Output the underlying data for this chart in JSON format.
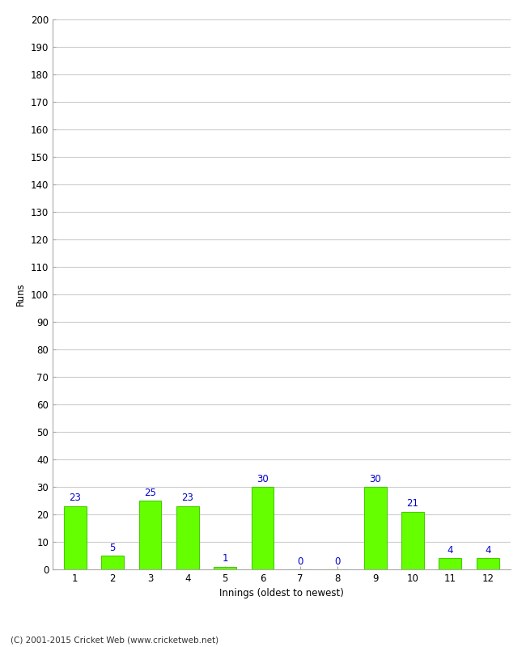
{
  "xlabel": "Innings (oldest to newest)",
  "ylabel": "Runs",
  "categories": [
    "1",
    "2",
    "3",
    "4",
    "5",
    "6",
    "7",
    "8",
    "9",
    "10",
    "11",
    "12"
  ],
  "values": [
    23,
    5,
    25,
    23,
    1,
    30,
    0,
    0,
    30,
    21,
    4,
    4
  ],
  "bar_color": "#66ff00",
  "bar_edge_color": "#44cc00",
  "label_color": "#0000cc",
  "ylim": [
    0,
    200
  ],
  "ytick_step": 10,
  "background_color": "#ffffff",
  "grid_color": "#cccccc",
  "footer": "(C) 2001-2015 Cricket Web (www.cricketweb.net)",
  "tick_color": "#666666",
  "spine_color": "#aaaaaa"
}
